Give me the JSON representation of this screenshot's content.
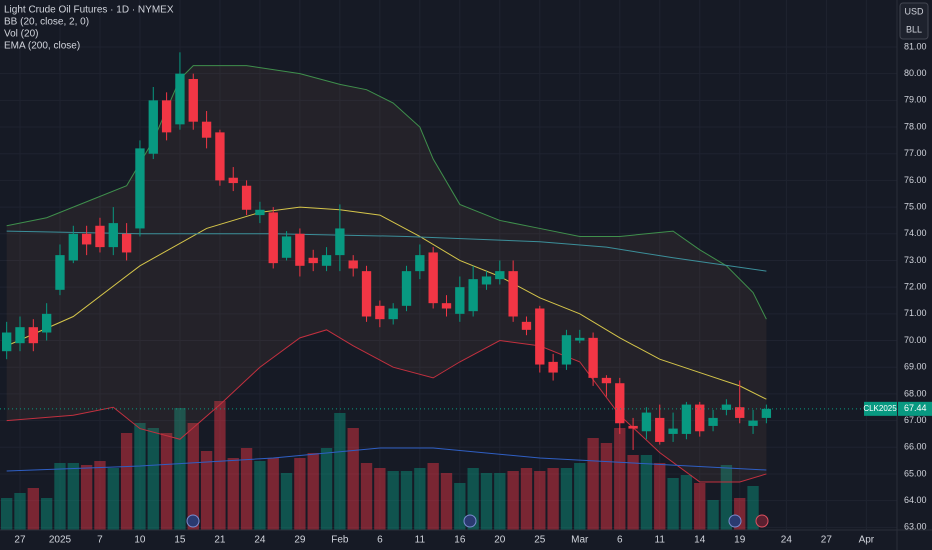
{
  "chart_data": {
    "type": "candlestick",
    "title": "Light Crude Oil Futures · 1D · NYMEX",
    "indicators": [
      "BB (20, close, 2, 0)",
      "Vol (20)",
      "EMA (200, close)"
    ],
    "currency_buttons": [
      "USD",
      "BLL"
    ],
    "symbol": "CLK2025",
    "up_color": "#089981",
    "down_color": "#f23645",
    "xlim": [
      -0.5,
      66.8
    ],
    "ylim": [
      62.9,
      82.76
    ],
    "volume_ylim": [
      0,
      2000
    ],
    "xticks": [
      {
        "value": 1,
        "label": "27"
      },
      {
        "value": 4,
        "label": "2025"
      },
      {
        "value": 7,
        "label": "7"
      },
      {
        "value": 10,
        "label": "10"
      },
      {
        "value": 13,
        "label": "15"
      },
      {
        "value": 16,
        "label": "21"
      },
      {
        "value": 19,
        "label": "24"
      },
      {
        "value": 22,
        "label": "29"
      },
      {
        "value": 25,
        "label": "Feb"
      },
      {
        "value": 28,
        "label": "6"
      },
      {
        "value": 31,
        "label": "11"
      },
      {
        "value": 34,
        "label": "16"
      },
      {
        "value": 37,
        "label": "20"
      },
      {
        "value": 40,
        "label": "25"
      },
      {
        "value": 43,
        "label": "Mar"
      },
      {
        "value": 46,
        "label": "6"
      },
      {
        "value": 49,
        "label": "11"
      },
      {
        "value": 52,
        "label": "14"
      },
      {
        "value": 55,
        "label": "19"
      },
      {
        "value": 58.5,
        "label": "24"
      },
      {
        "value": 61.5,
        "label": "27"
      },
      {
        "value": 64.5,
        "label": "Apr"
      }
    ],
    "yticks": [
      {
        "value": 81,
        "label": "81.00"
      },
      {
        "value": 80,
        "label": "80.00"
      },
      {
        "value": 79,
        "label": "79.00"
      },
      {
        "value": 78,
        "label": "78.00"
      },
      {
        "value": 77,
        "label": "77.00"
      },
      {
        "value": 76,
        "label": "76.00"
      },
      {
        "value": 75,
        "label": "75.00"
      },
      {
        "value": 74,
        "label": "74.00"
      },
      {
        "value": 73,
        "label": "73.00"
      },
      {
        "value": 72,
        "label": "72.00"
      },
      {
        "value": 71,
        "label": "71.00"
      },
      {
        "value": 70,
        "label": "70.00"
      },
      {
        "value": 69,
        "label": "69.00"
      },
      {
        "value": 68,
        "label": "68.00"
      },
      {
        "value": 67,
        "label": "67.00"
      },
      {
        "value": 66,
        "label": "66.00"
      },
      {
        "value": 65,
        "label": "65.00"
      },
      {
        "value": 64,
        "label": "64.00"
      },
      {
        "value": 63,
        "label": "63.00"
      }
    ],
    "x": [
      0,
      1,
      2,
      3,
      4,
      5,
      6,
      7,
      8,
      9,
      10,
      11,
      12,
      13,
      14,
      15,
      16,
      17,
      18,
      19,
      20,
      21,
      22,
      23,
      24,
      25,
      26,
      27,
      28,
      29,
      30,
      31,
      32,
      33,
      34,
      35,
      36,
      37,
      38,
      39,
      40,
      41,
      42,
      43,
      44,
      45,
      46,
      47,
      48,
      49,
      50,
      51,
      52,
      53,
      54,
      55,
      56,
      57
    ],
    "open": [
      69.6,
      69.9,
      70.5,
      70.3,
      71.9,
      73.0,
      74.0,
      74.3,
      73.5,
      74.0,
      74.2,
      77.0,
      79.0,
      78.1,
      79.8,
      78.2,
      77.8,
      76.1,
      75.8,
      74.7,
      74.8,
      73.1,
      74.0,
      73.1,
      72.8,
      73.2,
      73.0,
      72.6,
      71.3,
      70.8,
      71.3,
      72.6,
      73.3,
      71.4,
      71.0,
      71.1,
      72.1,
      72.3,
      72.6,
      70.7,
      71.2,
      69.2,
      69.1,
      70.0,
      70.1,
      68.6,
      68.4,
      66.8,
      66.6,
      67.1,
      66.5,
      66.5,
      67.6,
      66.8,
      67.4,
      67.5,
      66.8,
      67.1
    ],
    "high": [
      70.7,
      70.9,
      70.8,
      71.4,
      73.6,
      74.3,
      74.3,
      74.6,
      75.0,
      74.4,
      77.5,
      79.5,
      79.3,
      80.8,
      80.0,
      78.6,
      77.9,
      76.5,
      76.0,
      75.2,
      75.0,
      74.1,
      74.2,
      73.4,
      73.5,
      75.1,
      73.2,
      72.8,
      71.5,
      71.4,
      72.8,
      73.6,
      73.5,
      71.7,
      72.4,
      72.8,
      72.6,
      73.0,
      73.0,
      70.9,
      71.3,
      69.5,
      70.4,
      70.4,
      70.3,
      68.7,
      68.6,
      67.1,
      67.5,
      67.6,
      67.3,
      67.7,
      67.7,
      67.4,
      67.8,
      68.5,
      67.4,
      67.6
    ],
    "low": [
      69.3,
      69.6,
      69.6,
      70.0,
      71.7,
      72.9,
      73.2,
      73.3,
      73.2,
      73.0,
      73.9,
      76.8,
      77.5,
      77.9,
      77.9,
      77.2,
      75.8,
      75.6,
      74.7,
      74.4,
      72.7,
      73.0,
      72.4,
      72.6,
      72.6,
      72.6,
      72.4,
      70.7,
      70.5,
      70.6,
      71.1,
      72.3,
      71.2,
      70.9,
      70.7,
      70.9,
      71.9,
      72.1,
      70.7,
      70.2,
      68.8,
      68.5,
      68.9,
      69.9,
      68.3,
      67.9,
      66.5,
      65.9,
      66.3,
      66.1,
      66.2,
      66.3,
      66.4,
      66.6,
      67.2,
      66.9,
      66.5,
      66.9
    ],
    "close": [
      70.3,
      70.5,
      69.9,
      71.0,
      73.2,
      74.0,
      73.6,
      73.5,
      74.4,
      73.3,
      77.2,
      79.0,
      77.8,
      80.0,
      78.2,
      77.6,
      76.0,
      75.9,
      74.9,
      74.9,
      72.9,
      73.9,
      72.8,
      72.9,
      73.2,
      74.2,
      72.7,
      70.9,
      70.8,
      71.2,
      72.6,
      73.2,
      71.4,
      71.2,
      72.0,
      72.3,
      72.4,
      72.6,
      70.9,
      70.4,
      69.1,
      68.8,
      70.2,
      70.1,
      68.6,
      68.4,
      66.9,
      66.7,
      67.3,
      66.2,
      66.7,
      67.6,
      66.6,
      67.1,
      67.6,
      67.1,
      67.0,
      67.44
    ],
    "volume": [
      320,
      370,
      420,
      320,
      670,
      670,
      650,
      690,
      620,
      970,
      1070,
      1020,
      970,
      1220,
      1070,
      790,
      1290,
      720,
      820,
      690,
      720,
      570,
      720,
      770,
      820,
      1170,
      1020,
      670,
      620,
      590,
      590,
      620,
      670,
      570,
      470,
      620,
      570,
      570,
      590,
      620,
      590,
      620,
      620,
      670,
      920,
      870,
      1020,
      750,
      750,
      670,
      520,
      550,
      470,
      300,
      650,
      320,
      440,
      null
    ],
    "series": [
      {
        "name": "BB upper",
        "color": "#3f8f4c",
        "band": "upper",
        "x": [
          0,
          3,
          6,
          9,
          11,
          13,
          14,
          18,
          22,
          25,
          27,
          29,
          31,
          32,
          34,
          37,
          40,
          43,
          46,
          48,
          50,
          52,
          54,
          56,
          57
        ],
        "values": [
          74.3,
          74.6,
          75.2,
          75.8,
          77.5,
          79.8,
          80.3,
          80.3,
          80.0,
          79.6,
          79.4,
          78.9,
          78.0,
          76.8,
          75.1,
          74.5,
          74.2,
          73.9,
          73.9,
          74.0,
          74.1,
          73.4,
          72.8,
          71.8,
          70.8
        ]
      },
      {
        "name": "BB basis",
        "color": "#d5c54a",
        "x": [
          0,
          5,
          10,
          15,
          19,
          22,
          25,
          28,
          31,
          34,
          37,
          40,
          43,
          46,
          49,
          52,
          55,
          57
        ],
        "values": [
          69.8,
          70.9,
          72.8,
          74.2,
          74.8,
          75.0,
          74.9,
          74.7,
          73.9,
          73.0,
          72.4,
          71.6,
          71.0,
          70.1,
          69.3,
          68.8,
          68.3,
          67.8
        ]
      },
      {
        "name": "BB lower",
        "color": "#c2303f",
        "band": "lower",
        "x": [
          0,
          5,
          8,
          10,
          13,
          16,
          19,
          22,
          24,
          26,
          29,
          32,
          34,
          37,
          40,
          43,
          46,
          49,
          52,
          55,
          57
        ],
        "values": [
          67.0,
          67.2,
          67.5,
          66.7,
          66.3,
          67.6,
          69.0,
          70.1,
          70.4,
          69.8,
          69.0,
          68.6,
          69.2,
          70.0,
          69.8,
          69.2,
          67.2,
          65.8,
          64.7,
          64.7,
          65.0
        ]
      },
      {
        "name": "EMA",
        "color": "#3c8f9a",
        "x": [
          0,
          10,
          20,
          30,
          40,
          45,
          50,
          57
        ],
        "values": [
          74.1,
          74.0,
          74.0,
          73.9,
          73.7,
          73.5,
          73.1,
          72.6
        ]
      },
      {
        "name": "Vol MA",
        "color": "#2f5fc4",
        "axis": "volume",
        "x": [
          0,
          10,
          20,
          28,
          32,
          40,
          47,
          57
        ],
        "values": [
          590,
          640,
          720,
          820,
          820,
          720,
          670,
          600
        ]
      }
    ]
  }
}
